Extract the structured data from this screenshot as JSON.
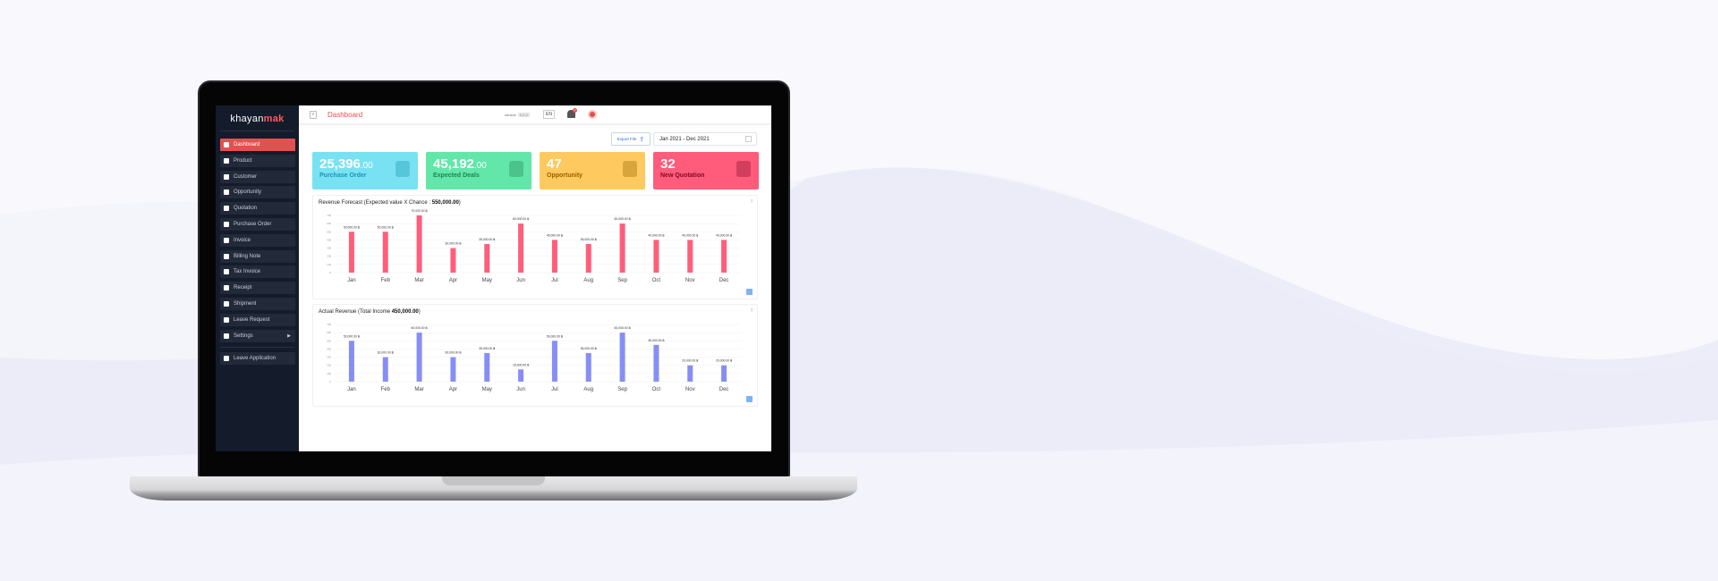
{
  "app": {
    "logo_prefix": "khayan",
    "logo_suffix": "mak"
  },
  "header": {
    "title": "Dashboard",
    "version_label": "version",
    "version_value": "6.6.2",
    "language": "EN",
    "notification_count": "3"
  },
  "sidebar": {
    "items": [
      {
        "label": "Dashboard",
        "icon": "chart-icon",
        "active": true
      },
      {
        "label": "Product",
        "icon": "bag-icon"
      },
      {
        "label": "Customer",
        "icon": "users-icon"
      },
      {
        "label": "Opportunity",
        "icon": "bulb-icon"
      },
      {
        "label": "Quotation",
        "icon": "document-icon"
      },
      {
        "label": "Purchase Order",
        "icon": "cart-icon"
      },
      {
        "label": "Invoice",
        "icon": "invoice-icon"
      },
      {
        "label": "Billing Note",
        "icon": "note-icon"
      },
      {
        "label": "Tax Invoice",
        "icon": "receipt-icon"
      },
      {
        "label": "Receipt",
        "icon": "receipt-icon"
      },
      {
        "label": "Shipment",
        "icon": "truck-icon"
      },
      {
        "label": "Leave Request",
        "icon": "plane-icon"
      },
      {
        "label": "Settings",
        "icon": "gear-icon",
        "has_submenu": true
      }
    ],
    "footer_item": {
      "label": "Leave Application",
      "icon": "coffee-icon"
    }
  },
  "toolbar": {
    "export_label": "Export File",
    "date_range": "Jan 2021 - Dec 2021"
  },
  "cards": [
    {
      "value": "25,396",
      "decimals": ".00",
      "label": "Purchase Order",
      "color": "#79e2f2",
      "label_color": "#1894b3",
      "icon": "cart-icon"
    },
    {
      "value": "45,192",
      "decimals": ".00",
      "label": "Expected Deals",
      "color": "#63e6a9",
      "label_color": "#1c8450",
      "icon": "thumbs-up-icon"
    },
    {
      "value": "47",
      "decimals": "",
      "label": "Opportunity",
      "color": "#fec95f",
      "label_color": "#936100",
      "icon": "bulb-icon"
    },
    {
      "value": "32",
      "decimals": "",
      "label": "New Quotation",
      "color": "#ff5b7b",
      "label_color": "#7d0a26",
      "icon": "quotation-icon"
    }
  ],
  "chart_data": [
    {
      "type": "bar",
      "title": "Revenue Forecast (Expected value X Chance : ",
      "title_value": "550,000.00",
      "title_end": ")",
      "color": "#ff5e7a",
      "categories": [
        "Jan",
        "Feb",
        "Mar",
        "Apr",
        "May",
        "Jun",
        "Jul",
        "Aug",
        "Sep",
        "Oct",
        "Nov",
        "Dec"
      ],
      "values": [
        50000,
        50000,
        70000,
        30000,
        35000,
        60000,
        40000,
        35000,
        60000,
        40000,
        40000,
        40000
      ],
      "data_labels": [
        "50,000.00 ฿",
        "50,000.00 ฿",
        "70,000.00 ฿",
        "30,000.00 ฿",
        "35,000.00 ฿",
        "60,000.00 ฿",
        "40,000.00 ฿",
        "35,000.00 ฿",
        "60,000.00 ฿",
        "40,000.00 ฿",
        "40,000.00 ฿",
        "40,000.00 ฿"
      ],
      "yticks": [
        "0",
        "10k",
        "20k",
        "30k",
        "40k",
        "50k",
        "60k",
        "70k"
      ],
      "ylim": [
        0,
        70000
      ],
      "grid": true
    },
    {
      "type": "bar",
      "title": "Actual Revenue (Total Income ",
      "title_value": "450,000.00",
      "title_end": ")",
      "color": "#868ef6",
      "categories": [
        "Jan",
        "Feb",
        "Mar",
        "Apr",
        "May",
        "Jun",
        "Jul",
        "Aug",
        "Sep",
        "Oct",
        "Nov",
        "Dec"
      ],
      "values": [
        50000,
        30000,
        60000,
        30000,
        35000,
        15000,
        50000,
        35000,
        60000,
        45000,
        20000,
        20000
      ],
      "data_labels": [
        "50,000.00 ฿",
        "30,000.00 ฿",
        "60,000.00 ฿",
        "30,000.00 ฿",
        "35,000.00 ฿",
        "15,000.00 ฿",
        "50,000.00 ฿",
        "35,000.00 ฿",
        "60,000.00 ฿",
        "45,000.00 ฿",
        "20,000.00 ฿",
        "20,000.00 ฿"
      ],
      "yticks": [
        "0",
        "10k",
        "20k",
        "30k",
        "40k",
        "50k",
        "60k",
        "70k"
      ],
      "ylim": [
        0,
        70000
      ],
      "grid": true
    }
  ]
}
